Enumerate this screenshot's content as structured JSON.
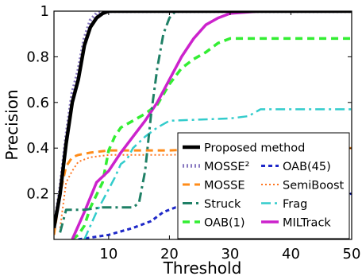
{
  "chart_data": {
    "type": "line",
    "title": "",
    "xlabel": "Threshold",
    "ylabel": "Precision",
    "xlim": [
      1,
      50
    ],
    "ylim": [
      0,
      1
    ],
    "xticks": [
      10,
      20,
      30,
      40,
      50
    ],
    "yticks": [
      0.2,
      0.4,
      0.6,
      0.8,
      1
    ],
    "grid": false,
    "legend_position": "bottom-right",
    "series": [
      {
        "name": "Proposed method",
        "color": "#000000",
        "style": "solid",
        "width": 4.5,
        "points": [
          [
            1,
            0.05
          ],
          [
            2,
            0.2
          ],
          [
            3,
            0.42
          ],
          [
            4,
            0.6
          ],
          [
            5,
            0.7
          ],
          [
            6,
            0.85
          ],
          [
            7,
            0.93
          ],
          [
            8,
            0.97
          ],
          [
            9,
            0.99
          ],
          [
            10,
            1
          ],
          [
            50,
            1
          ]
        ]
      },
      {
        "name": "MOSSE²",
        "color": "#8878c0",
        "style": "dot",
        "width": 4.5,
        "points": [
          [
            1,
            0.05
          ],
          [
            2,
            0.22
          ],
          [
            3,
            0.45
          ],
          [
            4,
            0.64
          ],
          [
            5,
            0.74
          ],
          [
            6,
            0.88
          ],
          [
            7,
            0.96
          ],
          [
            8,
            0.99
          ],
          [
            9,
            1
          ],
          [
            50,
            1
          ]
        ]
      },
      {
        "name": "MOSSE",
        "color": "#ff8c1a",
        "style": "dash",
        "width": 3,
        "points": [
          [
            1,
            0.02
          ],
          [
            2,
            0.2
          ],
          [
            3,
            0.32
          ],
          [
            4,
            0.36
          ],
          [
            5,
            0.37
          ],
          [
            7,
            0.38
          ],
          [
            10,
            0.39
          ],
          [
            20,
            0.39
          ],
          [
            30,
            0.4
          ],
          [
            40,
            0.4
          ],
          [
            50,
            0.4
          ]
        ]
      },
      {
        "name": "Struck",
        "color": "#1f8066",
        "style": "dashdot",
        "width": 3,
        "points": [
          [
            2,
            0.03
          ],
          [
            3,
            0.13
          ],
          [
            6,
            0.13
          ],
          [
            9,
            0.14
          ],
          [
            14,
            0.14
          ],
          [
            15,
            0.16
          ],
          [
            16,
            0.3
          ],
          [
            17,
            0.55
          ],
          [
            18,
            0.75
          ],
          [
            19,
            0.9
          ],
          [
            20,
            0.97
          ],
          [
            21,
            1
          ],
          [
            50,
            1
          ]
        ]
      },
      {
        "name": "OAB(45)",
        "color": "#1e28c8",
        "style": "dense-dash",
        "width": 3,
        "points": [
          [
            5,
            0.0
          ],
          [
            10,
            0.02
          ],
          [
            14,
            0.05
          ],
          [
            17,
            0.08
          ],
          [
            19,
            0.12
          ],
          [
            21,
            0.14
          ],
          [
            25,
            0.15
          ],
          [
            30,
            0.17
          ],
          [
            35,
            0.18
          ],
          [
            40,
            0.19
          ],
          [
            50,
            0.2
          ]
        ]
      },
      {
        "name": "SemiBoost",
        "color": "#ff7722",
        "style": "dot",
        "width": 2,
        "points": [
          [
            2,
            0.05
          ],
          [
            3,
            0.25
          ],
          [
            4,
            0.3
          ],
          [
            5,
            0.34
          ],
          [
            7,
            0.36
          ],
          [
            10,
            0.37
          ],
          [
            20,
            0.37
          ],
          [
            30,
            0.38
          ],
          [
            40,
            0.4
          ],
          [
            50,
            0.4
          ]
        ]
      },
      {
        "name": "OAB(1)",
        "color": "#33ee33",
        "style": "dash",
        "width": 3.5,
        "points": [
          [
            4,
            0.0
          ],
          [
            5,
            0.02
          ],
          [
            6,
            0.06
          ],
          [
            7,
            0.14
          ],
          [
            9,
            0.25
          ],
          [
            10,
            0.39
          ],
          [
            11,
            0.45
          ],
          [
            12,
            0.49
          ],
          [
            14,
            0.52
          ],
          [
            16,
            0.55
          ],
          [
            18,
            0.59
          ],
          [
            20,
            0.68
          ],
          [
            22,
            0.75
          ],
          [
            24,
            0.79
          ],
          [
            26,
            0.82
          ],
          [
            28,
            0.86
          ],
          [
            30,
            0.88
          ],
          [
            50,
            0.88
          ]
        ]
      },
      {
        "name": "Frag",
        "color": "#33cccc",
        "style": "dashdot",
        "width": 2.5,
        "points": [
          [
            6,
            0.0
          ],
          [
            7,
            0.06
          ],
          [
            8,
            0.12
          ],
          [
            10,
            0.22
          ],
          [
            11,
            0.27
          ],
          [
            12,
            0.33
          ],
          [
            13,
            0.35
          ],
          [
            14,
            0.4
          ],
          [
            16,
            0.45
          ],
          [
            18,
            0.49
          ],
          [
            20,
            0.52
          ],
          [
            30,
            0.53
          ],
          [
            33,
            0.54
          ],
          [
            35,
            0.57
          ],
          [
            50,
            0.57
          ]
        ]
      },
      {
        "name": "MILTrack",
        "color": "#cc22cc",
        "style": "solid",
        "width": 3.5,
        "points": [
          [
            4,
            0.0
          ],
          [
            6,
            0.12
          ],
          [
            8,
            0.25
          ],
          [
            10,
            0.3
          ],
          [
            12,
            0.38
          ],
          [
            14,
            0.45
          ],
          [
            16,
            0.52
          ],
          [
            18,
            0.6
          ],
          [
            20,
            0.7
          ],
          [
            22,
            0.8
          ],
          [
            24,
            0.88
          ],
          [
            26,
            0.94
          ],
          [
            28,
            0.97
          ],
          [
            30,
            0.99
          ],
          [
            35,
            1
          ],
          [
            50,
            1
          ]
        ]
      }
    ],
    "legend_layout": [
      [
        "Proposed method"
      ],
      [
        "MOSSE²",
        "OAB(45)"
      ],
      [
        "MOSSE",
        "SemiBoost"
      ],
      [
        "Struck",
        "Frag"
      ],
      [
        "OAB(1)",
        "MILTrack"
      ]
    ]
  }
}
